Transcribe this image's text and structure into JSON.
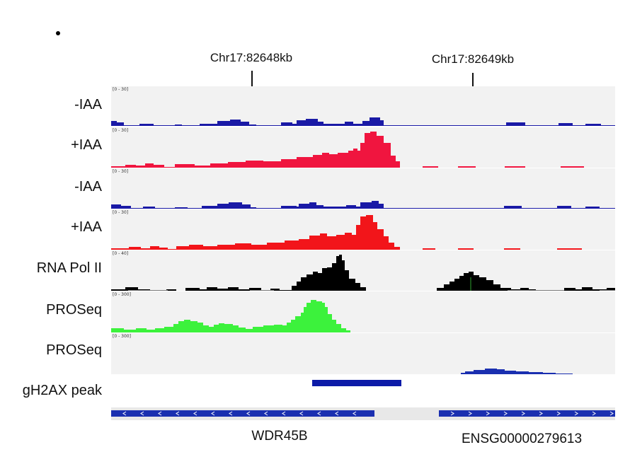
{
  "locus_ruler": {
    "ticks": [
      {
        "label": "Chr17:82648kb"
      },
      {
        "label": "Chr17:82649kb"
      }
    ]
  },
  "tracks": [
    {
      "id": "t1",
      "label": "-IAA",
      "scale": "[0 - 30]",
      "color": "#1a1aa6"
    },
    {
      "id": "t2",
      "label": "+IAA",
      "scale": "[0 - 30]",
      "color": "#f0153f"
    },
    {
      "id": "t3",
      "label": "-IAA",
      "scale": "[0 - 30]",
      "color": "#1a1aa6"
    },
    {
      "id": "t4",
      "label": "+IAA",
      "scale": "[0 - 30]",
      "color": "#f2151a"
    },
    {
      "id": "t5",
      "label": "RNA Pol II",
      "scale": "[0 - 40]",
      "color": "#000000"
    },
    {
      "id": "t6",
      "label": "PROSeq",
      "scale": "[0 - 300]",
      "color": "#3cf23c"
    },
    {
      "id": "t7",
      "label": "PROSeq",
      "scale": "[0 - 300]",
      "color": "#1a2fb0"
    },
    {
      "id": "t8",
      "label": "gH2AX peak",
      "scale": "",
      "color": "#0c1ba8"
    }
  ],
  "genes": [
    {
      "name": "WDR45B",
      "strand": "-"
    },
    {
      "name": "ENSG00000279613",
      "strand": "+"
    }
  ],
  "colors": {
    "gene_track": "#1a2fb0",
    "track_bg": "#f2f2f2"
  }
}
